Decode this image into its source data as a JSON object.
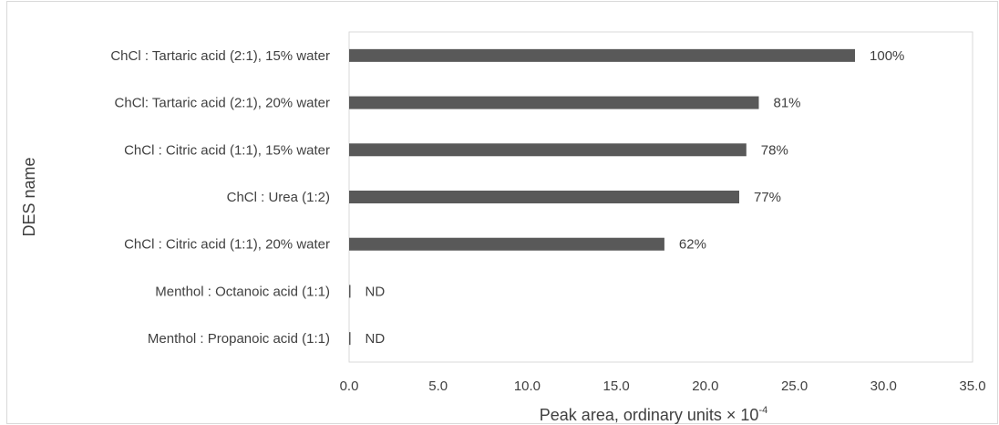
{
  "chart_data": {
    "type": "bar",
    "orientation": "horizontal",
    "categories": [
      "ChCl : Tartaric acid (2:1), 15% water",
      "ChCl: Tartaric acid (2:1), 20% water",
      "ChCl :  Citric acid (1:1), 15% water",
      "ChCl : Urea (1:2)",
      "ChCl : Citric acid (1:1), 20% water",
      "Menthol : Octanoic acid (1:1)",
      "Menthol : Propanoic acid (1:1)"
    ],
    "values": [
      28.4,
      23.0,
      22.3,
      21.9,
      17.7,
      0,
      0
    ],
    "data_labels": [
      "100%",
      "81%",
      "78%",
      "77%",
      "62%",
      "ND",
      "ND"
    ],
    "xlabel": "Peak area, ordinary units × 10",
    "xlabel_sup": "-4",
    "ylabel": "DES name",
    "xlim": [
      0,
      35
    ],
    "xticks": [
      "0.0",
      "5.0",
      "10.0",
      "15.0",
      "20.0",
      "25.0",
      "30.0",
      "35.0"
    ],
    "bar_color": "#595959",
    "grid": false,
    "legend": "none"
  }
}
